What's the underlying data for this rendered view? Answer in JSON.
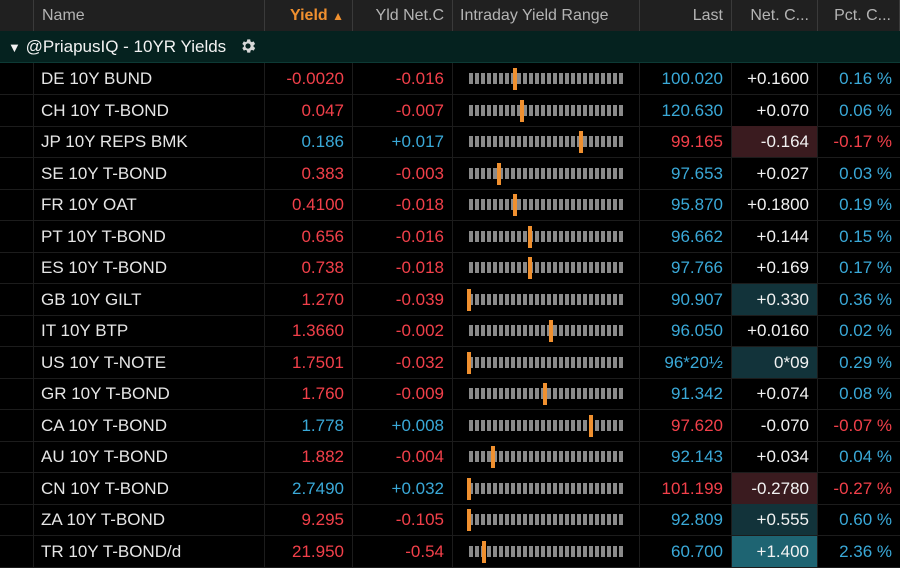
{
  "colors": {
    "sorted_header": "#f0902f",
    "negative": "#f2404a",
    "positive": "#3aa9d8",
    "range_marker": "#f0902f",
    "group_bg": "#05221f"
  },
  "columns": {
    "name": "Name",
    "yield": "Yield",
    "yield_sort_indicator": "▲",
    "yld_net": "Yld Net.C",
    "range": "Intraday Yield Range",
    "last": "Last",
    "net": "Net. C...",
    "pct": "Pct. C..."
  },
  "group": {
    "toggle": "▼",
    "title": "@PriapusIQ - 10YR Yields",
    "settings_icon": "gear-icon"
  },
  "rows": [
    {
      "name": "DE 10Y BUND",
      "yield": "-0.0020",
      "yield_color": "red",
      "yld_net": "-0.016",
      "yld_net_color": "red",
      "range_pos": 0.3,
      "last": "100.020",
      "last_color": "blue",
      "net": "+0.1600",
      "net_color": "white",
      "net_bg": "",
      "pct": "0.16 %",
      "pct_color": "blue"
    },
    {
      "name": "CH 10Y T-BOND",
      "yield": "0.047",
      "yield_color": "red",
      "yld_net": "-0.007",
      "yld_net_color": "red",
      "range_pos": 0.35,
      "last": "120.630",
      "last_color": "blue",
      "net": "+0.070",
      "net_color": "white",
      "net_bg": "",
      "pct": "0.06 %",
      "pct_color": "blue"
    },
    {
      "name": "JP 10Y REPS BMK",
      "yield": "0.186",
      "yield_color": "blue",
      "yld_net": "+0.017",
      "yld_net_color": "blue",
      "range_pos": 0.74,
      "last": "99.165",
      "last_color": "red",
      "net": "-0.164",
      "net_color": "white",
      "net_bg": "neg",
      "pct": "-0.17 %",
      "pct_color": "red"
    },
    {
      "name": "SE 10Y T-BOND",
      "yield": "0.383",
      "yield_color": "red",
      "yld_net": "-0.003",
      "yld_net_color": "red",
      "range_pos": 0.2,
      "last": "97.653",
      "last_color": "blue",
      "net": "+0.027",
      "net_color": "white",
      "net_bg": "",
      "pct": "0.03 %",
      "pct_color": "blue"
    },
    {
      "name": "FR 10Y OAT",
      "yield": "0.4100",
      "yield_color": "red",
      "yld_net": "-0.018",
      "yld_net_color": "red",
      "range_pos": 0.3,
      "last": "95.870",
      "last_color": "blue",
      "net": "+0.1800",
      "net_color": "white",
      "net_bg": "",
      "pct": "0.19 %",
      "pct_color": "blue"
    },
    {
      "name": "PT 10Y T-BOND",
      "yield": "0.656",
      "yield_color": "red",
      "yld_net": "-0.016",
      "yld_net_color": "red",
      "range_pos": 0.4,
      "last": "96.662",
      "last_color": "blue",
      "net": "+0.144",
      "net_color": "white",
      "net_bg": "",
      "pct": "0.15 %",
      "pct_color": "blue"
    },
    {
      "name": "ES 10Y T-BOND",
      "yield": "0.738",
      "yield_color": "red",
      "yld_net": "-0.018",
      "yld_net_color": "red",
      "range_pos": 0.4,
      "last": "97.766",
      "last_color": "blue",
      "net": "+0.169",
      "net_color": "white",
      "net_bg": "",
      "pct": "0.17 %",
      "pct_color": "blue"
    },
    {
      "name": "GB 10Y GILT",
      "yield": "1.270",
      "yield_color": "red",
      "yld_net": "-0.039",
      "yld_net_color": "red",
      "range_pos": 0.0,
      "last": "90.907",
      "last_color": "blue",
      "net": "+0.330",
      "net_color": "white",
      "net_bg": "pos",
      "pct": "0.36 %",
      "pct_color": "blue"
    },
    {
      "name": "IT 10Y BTP",
      "yield": "1.3660",
      "yield_color": "red",
      "yld_net": "-0.002",
      "yld_net_color": "red",
      "range_pos": 0.54,
      "last": "96.050",
      "last_color": "blue",
      "net": "+0.0160",
      "net_color": "white",
      "net_bg": "",
      "pct": "0.02 %",
      "pct_color": "blue"
    },
    {
      "name": "US 10Y T-NOTE",
      "yield": "1.7501",
      "yield_color": "red",
      "yld_net": "-0.032",
      "yld_net_color": "red",
      "range_pos": 0.0,
      "last": "96*20½",
      "last_color": "blue",
      "net": "0*09",
      "net_color": "white",
      "net_bg": "pos",
      "pct": "0.29 %",
      "pct_color": "blue"
    },
    {
      "name": "GR 10Y T-BOND",
      "yield": "1.760",
      "yield_color": "red",
      "yld_net": "-0.009",
      "yld_net_color": "red",
      "range_pos": 0.5,
      "last": "91.342",
      "last_color": "blue",
      "net": "+0.074",
      "net_color": "white",
      "net_bg": "",
      "pct": "0.08 %",
      "pct_color": "blue"
    },
    {
      "name": "CA 10Y T-BOND",
      "yield": "1.778",
      "yield_color": "blue",
      "yld_net": "+0.008",
      "yld_net_color": "blue",
      "range_pos": 0.8,
      "last": "97.620",
      "last_color": "red",
      "net": "-0.070",
      "net_color": "white",
      "net_bg": "",
      "pct": "-0.07 %",
      "pct_color": "red"
    },
    {
      "name": "AU 10Y T-BOND",
      "yield": "1.882",
      "yield_color": "red",
      "yld_net": "-0.004",
      "yld_net_color": "red",
      "range_pos": 0.16,
      "last": "92.143",
      "last_color": "blue",
      "net": "+0.034",
      "net_color": "white",
      "net_bg": "",
      "pct": "0.04 %",
      "pct_color": "blue"
    },
    {
      "name": "CN 10Y T-BOND",
      "yield": "2.7490",
      "yield_color": "blue",
      "yld_net": "+0.032",
      "yld_net_color": "blue",
      "range_pos": 0.0,
      "last": "101.199",
      "last_color": "red",
      "net": "-0.2780",
      "net_color": "white",
      "net_bg": "neg",
      "pct": "-0.27 %",
      "pct_color": "red"
    },
    {
      "name": "ZA 10Y T-BOND",
      "yield": "9.295",
      "yield_color": "red",
      "yld_net": "-0.105",
      "yld_net_color": "red",
      "range_pos": 0.0,
      "last": "92.809",
      "last_color": "blue",
      "net": "+0.555",
      "net_color": "white",
      "net_bg": "pos",
      "pct": "0.60 %",
      "pct_color": "blue"
    },
    {
      "name": "TR 10Y T-BOND/d",
      "yield": "21.950",
      "yield_color": "red",
      "yld_net": "-0.54",
      "yld_net_color": "red",
      "range_pos": 0.1,
      "last": "60.700",
      "last_color": "blue",
      "net": "+1.400",
      "net_color": "white",
      "net_bg": "pos-strong",
      "pct": "2.36 %",
      "pct_color": "blue"
    }
  ]
}
